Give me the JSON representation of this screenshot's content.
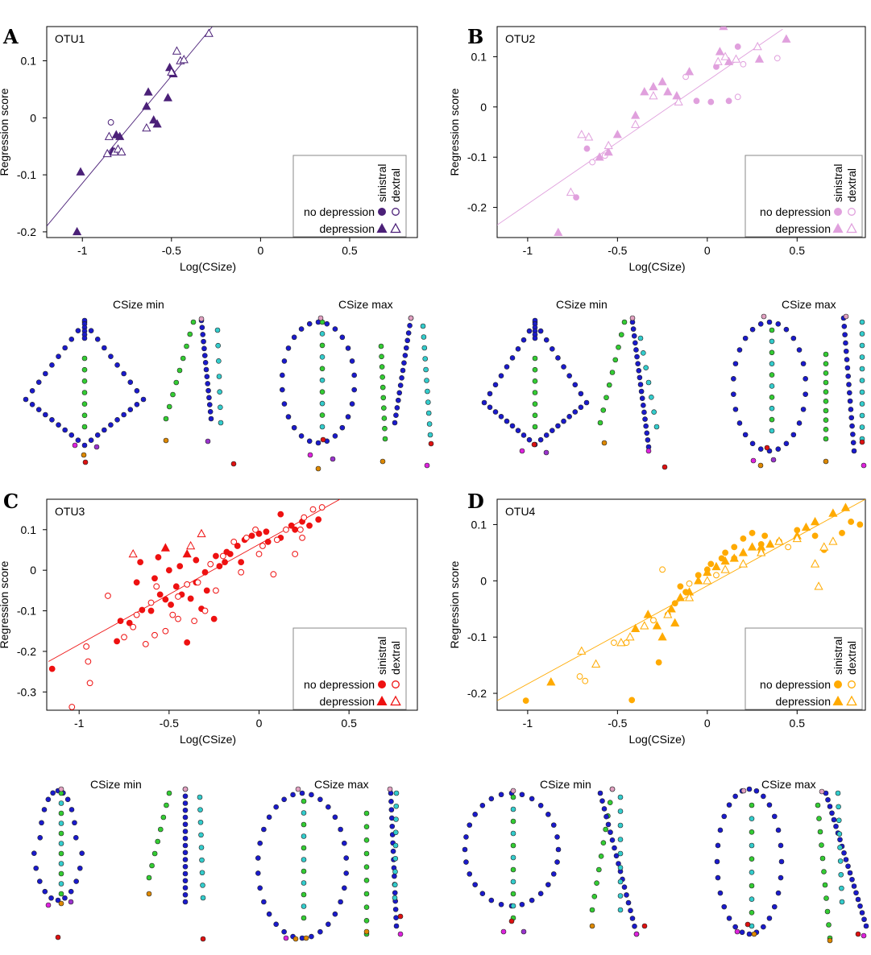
{
  "figure": {
    "xlabel": "Log(CSize)",
    "ylabel": "Regression score",
    "csize_min_label": "CSize min",
    "csize_max_label": "CSize max",
    "legend": {
      "col_labels": [
        "sinistral",
        "dextral"
      ],
      "row_labels": [
        "no depression",
        "depression"
      ]
    }
  },
  "landmark_colors": {
    "outline": "#1a1acc",
    "midline": "#33cc33",
    "lateral": "#33cccc",
    "tip_top": "#e0a0c0",
    "accent_red": "#dd1111",
    "accent_orange": "#dd8800",
    "accent_magenta": "#dd22dd",
    "accent_purple": "#9933cc"
  },
  "chart_data": [
    {
      "type": "scatter",
      "panel": "A",
      "otu": "OTU1",
      "color": "#4b2078",
      "xlim": [
        -1.2,
        0.88
      ],
      "ylim": [
        -0.21,
        0.16
      ],
      "xticks": [
        -1,
        -0.5,
        0,
        0.5
      ],
      "xtick_labels": [
        "-1",
        "-0.5",
        "0",
        "0.5"
      ],
      "yticks": [
        -0.2,
        -0.1,
        0,
        0.1
      ],
      "ytick_labels": [
        "-0.2",
        "-0.1",
        "0",
        "0.1"
      ],
      "fit_line": [
        [
          -1.2,
          -0.19
        ],
        [
          -0.27,
          0.16
        ]
      ],
      "points": {
        "sinistral_no_depression": [],
        "dextral_no_depression": [
          [
            -0.84,
            -0.008
          ]
        ],
        "sinistral_depression": [
          [
            -1.03,
            -0.2
          ],
          [
            -1.01,
            -0.095
          ],
          [
            -0.83,
            -0.058
          ],
          [
            -0.81,
            -0.03
          ],
          [
            -0.79,
            -0.033
          ],
          [
            -0.64,
            0.02
          ],
          [
            -0.63,
            0.045
          ],
          [
            -0.6,
            -0.004
          ],
          [
            -0.58,
            -0.011
          ],
          [
            -0.52,
            0.035
          ],
          [
            -0.51,
            0.088
          ],
          [
            -0.49,
            0.077
          ]
        ],
        "dextral_depression": [
          [
            -0.86,
            -0.063
          ],
          [
            -0.85,
            -0.033
          ],
          [
            -0.82,
            -0.06
          ],
          [
            -0.8,
            -0.055
          ],
          [
            -0.78,
            -0.06
          ],
          [
            -0.64,
            -0.018
          ],
          [
            -0.5,
            0.08
          ],
          [
            -0.47,
            0.117
          ],
          [
            -0.45,
            0.1
          ],
          [
            -0.43,
            0.102
          ],
          [
            -0.29,
            0.148
          ]
        ]
      }
    },
    {
      "type": "scatter",
      "panel": "B",
      "otu": "OTU2",
      "color": "#e0a0dd",
      "xlim": [
        -1.17,
        0.88
      ],
      "ylim": [
        -0.26,
        0.16
      ],
      "xticks": [
        -1,
        -0.5,
        0,
        0.5
      ],
      "xtick_labels": [
        "-1",
        "-0.5",
        "0",
        "0.5"
      ],
      "yticks": [
        -0.2,
        -0.1,
        0,
        0.1
      ],
      "ytick_labels": [
        "-0.2",
        "-0.1",
        "0",
        "0.1"
      ],
      "fit_line": [
        [
          -1.17,
          -0.235
        ],
        [
          0.42,
          0.155
        ]
      ],
      "points": {
        "sinistral_no_depression": [
          [
            -0.73,
            -0.18
          ],
          [
            -0.67,
            -0.083
          ],
          [
            -0.06,
            0.012
          ],
          [
            0.02,
            0.01
          ],
          [
            0.05,
            0.08
          ],
          [
            0.12,
            0.012
          ],
          [
            0.17,
            0.12
          ]
        ],
        "dextral_no_depression": [
          [
            -0.64,
            -0.11
          ],
          [
            -0.57,
            -0.097
          ],
          [
            -0.12,
            0.06
          ],
          [
            0.17,
            0.02
          ],
          [
            0.2,
            0.085
          ],
          [
            0.39,
            0.097
          ]
        ],
        "sinistral_depression": [
          [
            -0.83,
            -0.25
          ],
          [
            -0.6,
            -0.1
          ],
          [
            -0.55,
            -0.09
          ],
          [
            -0.5,
            -0.055
          ],
          [
            -0.4,
            -0.017
          ],
          [
            -0.35,
            0.03
          ],
          [
            -0.3,
            0.04
          ],
          [
            -0.25,
            0.05
          ],
          [
            -0.22,
            0.03
          ],
          [
            -0.17,
            0.022
          ],
          [
            -0.1,
            0.07
          ],
          [
            0.07,
            0.11
          ],
          [
            0.12,
            0.09
          ],
          [
            0.29,
            0.095
          ],
          [
            0.44,
            0.135
          ],
          [
            0.09,
            0.16
          ]
        ],
        "dextral_depression": [
          [
            -0.76,
            -0.17
          ],
          [
            -0.7,
            -0.055
          ],
          [
            -0.66,
            -0.06
          ],
          [
            -0.55,
            -0.077
          ],
          [
            -0.4,
            -0.035
          ],
          [
            -0.3,
            0.022
          ],
          [
            -0.16,
            0.01
          ],
          [
            0.06,
            0.09
          ],
          [
            0.1,
            0.1
          ],
          [
            0.16,
            0.095
          ],
          [
            0.28,
            0.12
          ]
        ]
      }
    },
    {
      "type": "scatter",
      "panel": "C",
      "otu": "OTU3",
      "color": "#ee1111",
      "xlim": [
        -1.18,
        0.88
      ],
      "ylim": [
        -0.345,
        0.175
      ],
      "xticks": [
        -1,
        -0.5,
        0,
        0.5
      ],
      "xtick_labels": [
        "-1",
        "-0.5",
        "0",
        "0.5"
      ],
      "yticks": [
        -0.3,
        -0.2,
        -0.1,
        0,
        0.1
      ],
      "ytick_labels": [
        "-0.3",
        "-0.2",
        "-0.1",
        "0",
        "0.1"
      ],
      "fit_line": [
        [
          -1.17,
          -0.225
        ],
        [
          0.45,
          0.175
        ]
      ],
      "points": {
        "sinistral_no_depression": [
          [
            -1.15,
            -0.243
          ],
          [
            -0.79,
            -0.175
          ],
          [
            -0.77,
            -0.125
          ],
          [
            -0.72,
            -0.13
          ],
          [
            -0.68,
            -0.03
          ],
          [
            -0.65,
            -0.098
          ],
          [
            -0.6,
            -0.1
          ],
          [
            -0.58,
            -0.02
          ],
          [
            -0.55,
            -0.06
          ],
          [
            -0.52,
            -0.072
          ],
          [
            -0.49,
            -0.085
          ],
          [
            -0.46,
            -0.04
          ],
          [
            -0.43,
            -0.06
          ],
          [
            -0.4,
            -0.178
          ],
          [
            -0.38,
            -0.07
          ],
          [
            -0.35,
            -0.03
          ],
          [
            -0.32,
            -0.095
          ],
          [
            -0.29,
            -0.05
          ],
          [
            -0.25,
            -0.12
          ],
          [
            -0.22,
            0.01
          ],
          [
            -0.19,
            0.02
          ],
          [
            -0.16,
            0.04
          ],
          [
            -0.12,
            0.06
          ],
          [
            -0.08,
            0.075
          ],
          [
            -0.04,
            0.085
          ],
          [
            0.0,
            0.09
          ],
          [
            0.04,
            0.095
          ],
          [
            0.12,
            0.08
          ],
          [
            0.12,
            0.138
          ],
          [
            0.2,
            0.1
          ],
          [
            0.28,
            0.11
          ],
          [
            0.33,
            0.125
          ],
          [
            -0.66,
            0.02
          ],
          [
            -0.56,
            0.032
          ],
          [
            -0.5,
            0.0
          ],
          [
            -0.44,
            0.01
          ],
          [
            -0.35,
            0.025
          ],
          [
            -0.3,
            -0.005
          ],
          [
            -0.24,
            0.035
          ],
          [
            -0.18,
            0.045
          ],
          [
            -0.1,
            0.02
          ],
          [
            0.05,
            0.07
          ],
          [
            0.18,
            0.11
          ],
          [
            0.24,
            0.12
          ]
        ],
        "dextral_no_depression": [
          [
            -1.04,
            -0.337
          ],
          [
            -0.94,
            -0.278
          ],
          [
            -0.95,
            -0.225
          ],
          [
            -0.96,
            -0.188
          ],
          [
            -0.84,
            -0.063
          ],
          [
            -0.75,
            -0.165
          ],
          [
            -0.7,
            -0.14
          ],
          [
            -0.68,
            -0.11
          ],
          [
            -0.63,
            -0.182
          ],
          [
            -0.6,
            -0.08
          ],
          [
            -0.57,
            -0.04
          ],
          [
            -0.52,
            -0.15
          ],
          [
            -0.48,
            -0.11
          ],
          [
            -0.45,
            -0.12
          ],
          [
            -0.4,
            -0.035
          ],
          [
            -0.36,
            -0.125
          ],
          [
            -0.3,
            -0.1
          ],
          [
            -0.27,
            0.015
          ],
          [
            -0.2,
            0.035
          ],
          [
            -0.14,
            0.07
          ],
          [
            -0.07,
            0.08
          ],
          [
            -0.02,
            0.1
          ],
          [
            0.02,
            0.06
          ],
          [
            0.08,
            -0.01
          ],
          [
            0.15,
            0.1
          ],
          [
            0.2,
            0.04
          ],
          [
            0.24,
            0.08
          ],
          [
            0.3,
            0.15
          ],
          [
            0.35,
            0.155
          ],
          [
            0.25,
            0.13
          ],
          [
            0.23,
            0.1
          ],
          [
            -0.58,
            -0.16
          ],
          [
            -0.45,
            -0.065
          ],
          [
            -0.34,
            -0.03
          ],
          [
            -0.24,
            -0.05
          ],
          [
            -0.1,
            -0.005
          ],
          [
            0.0,
            0.04
          ],
          [
            0.1,
            0.075
          ]
        ],
        "sinistral_depression": [
          [
            -0.52,
            0.055
          ],
          [
            -0.4,
            0.04
          ]
        ],
        "dextral_depression": [
          [
            -0.7,
            0.04
          ],
          [
            -0.38,
            0.06
          ],
          [
            -0.32,
            0.09
          ]
        ]
      }
    },
    {
      "type": "scatter",
      "panel": "D",
      "otu": "OTU4",
      "color": "#ffaa00",
      "xlim": [
        -1.17,
        0.88
      ],
      "ylim": [
        -0.23,
        0.145
      ],
      "xticks": [
        -1,
        -0.5,
        0,
        0.5
      ],
      "xtick_labels": [
        "-1",
        "-0.5",
        "0",
        "0.5"
      ],
      "yticks": [
        -0.2,
        -0.1,
        0,
        0.1
      ],
      "ytick_labels": [
        "-0.2",
        "-0.1",
        "0",
        "0.1"
      ],
      "fit_line": [
        [
          -1.17,
          -0.213
        ],
        [
          0.88,
          0.145
        ]
      ],
      "points": {
        "sinistral_no_depression": [
          [
            -1.01,
            -0.213
          ],
          [
            -0.42,
            -0.212
          ],
          [
            -0.27,
            -0.145
          ],
          [
            -0.22,
            -0.06
          ],
          [
            -0.18,
            -0.04
          ],
          [
            -0.12,
            -0.02
          ],
          [
            -0.05,
            0.01
          ],
          [
            0.02,
            0.03
          ],
          [
            0.08,
            0.04
          ],
          [
            0.15,
            0.06
          ],
          [
            0.2,
            0.075
          ],
          [
            0.25,
            0.085
          ],
          [
            0.32,
            0.08
          ],
          [
            0.4,
            0.07
          ],
          [
            0.5,
            0.09
          ],
          [
            0.6,
            0.08
          ],
          [
            0.65,
            0.055
          ],
          [
            0.75,
            0.085
          ],
          [
            0.8,
            0.105
          ],
          [
            0.85,
            0.1
          ],
          [
            -0.3,
            -0.07
          ],
          [
            -0.15,
            -0.01
          ],
          [
            0.0,
            0.02
          ],
          [
            0.1,
            0.05
          ],
          [
            0.3,
            0.065
          ]
        ],
        "dextral_no_depression": [
          [
            -0.71,
            -0.17
          ],
          [
            -0.68,
            -0.178
          ],
          [
            -0.52,
            -0.11
          ],
          [
            -0.45,
            -0.11
          ],
          [
            -0.3,
            -0.07
          ],
          [
            -0.25,
            0.02
          ],
          [
            -0.1,
            -0.005
          ],
          [
            0.05,
            0.01
          ],
          [
            0.15,
            0.04
          ],
          [
            0.3,
            0.05
          ],
          [
            0.45,
            0.06
          ]
        ],
        "sinistral_depression": [
          [
            -0.87,
            -0.18
          ],
          [
            -0.4,
            -0.085
          ],
          [
            -0.33,
            -0.06
          ],
          [
            -0.28,
            -0.08
          ],
          [
            -0.2,
            -0.05
          ],
          [
            -0.15,
            -0.03
          ],
          [
            -0.1,
            -0.02
          ],
          [
            -0.05,
            0.0
          ],
          [
            0.0,
            0.015
          ],
          [
            0.05,
            0.025
          ],
          [
            0.1,
            0.035
          ],
          [
            0.15,
            0.04
          ],
          [
            0.2,
            0.05
          ],
          [
            0.25,
            0.06
          ],
          [
            0.3,
            0.06
          ],
          [
            0.35,
            0.065
          ],
          [
            0.4,
            0.07
          ],
          [
            0.5,
            0.08
          ],
          [
            0.55,
            0.095
          ],
          [
            0.6,
            0.105
          ],
          [
            0.7,
            0.12
          ],
          [
            0.77,
            0.13
          ],
          [
            -0.25,
            -0.1
          ],
          [
            -0.18,
            -0.075
          ]
        ],
        "dextral_depression": [
          [
            -0.7,
            -0.125
          ],
          [
            -0.62,
            -0.148
          ],
          [
            -0.48,
            -0.11
          ],
          [
            -0.43,
            -0.1
          ],
          [
            -0.35,
            -0.08
          ],
          [
            -0.22,
            -0.06
          ],
          [
            -0.1,
            -0.03
          ],
          [
            0.0,
            0.0
          ],
          [
            0.1,
            0.02
          ],
          [
            0.2,
            0.03
          ],
          [
            0.3,
            0.05
          ],
          [
            0.4,
            0.07
          ],
          [
            0.5,
            0.075
          ],
          [
            0.6,
            0.03
          ],
          [
            0.65,
            0.06
          ],
          [
            0.7,
            0.07
          ],
          [
            0.62,
            -0.01
          ]
        ]
      }
    }
  ]
}
